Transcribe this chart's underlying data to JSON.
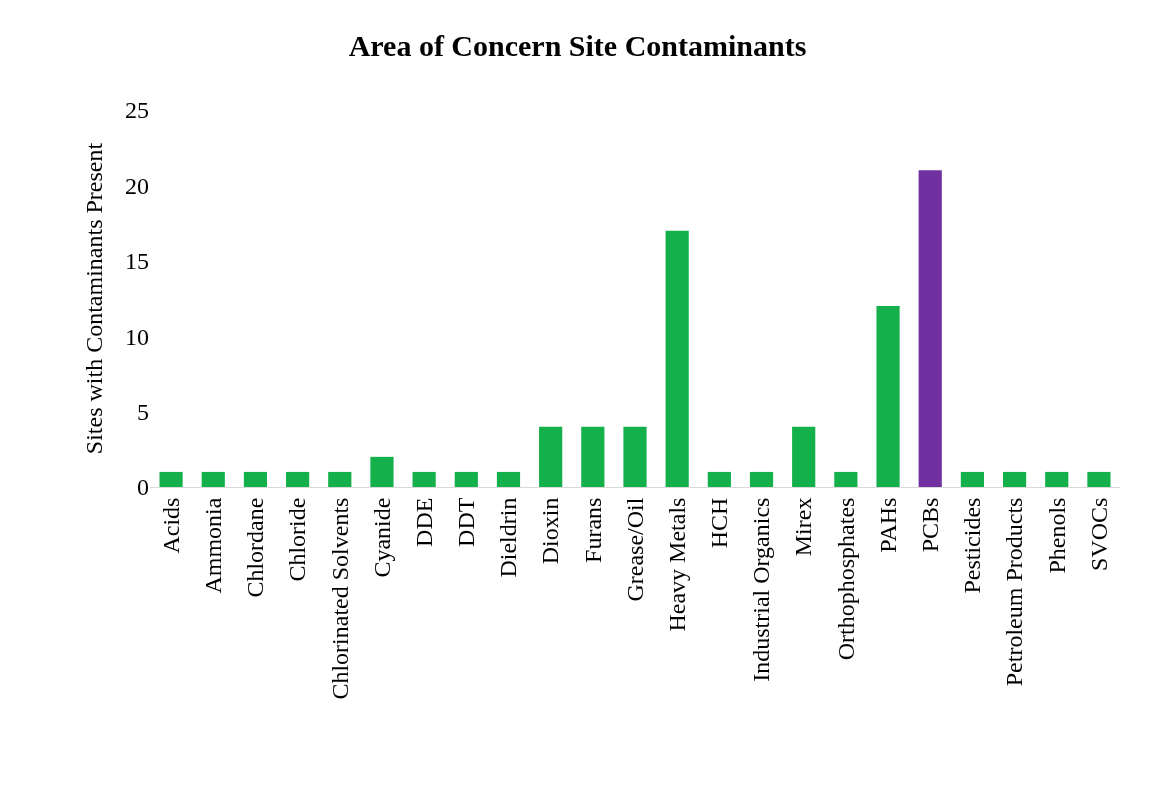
{
  "chart_data": {
    "type": "bar",
    "title": "Area of Concern Site Contaminants",
    "ylabel": "Sites with Contaminants Present",
    "categories": [
      "Acids",
      "Ammonia",
      "Chlordane",
      "Chloride",
      "Chlorinated Solvents",
      "Cyanide",
      "DDE",
      "DDT",
      "Dieldrin",
      "Dioxin",
      "Furans",
      "Grease/Oil",
      "Heavy Metals",
      "HCH",
      "Industrial Organics",
      "Mirex",
      "Orthophosphates",
      "PAHs",
      "PCBs",
      "Pesticides",
      "Petroleum Products",
      "Phenols",
      "SVOCs"
    ],
    "values": [
      1,
      1,
      1,
      1,
      1,
      2,
      1,
      1,
      1,
      4,
      4,
      4,
      17,
      1,
      1,
      4,
      1,
      12,
      21,
      1,
      1,
      1,
      1
    ],
    "colors": [
      "#14b04c",
      "#14b04c",
      "#14b04c",
      "#14b04c",
      "#14b04c",
      "#14b04c",
      "#14b04c",
      "#14b04c",
      "#14b04c",
      "#14b04c",
      "#14b04c",
      "#14b04c",
      "#14b04c",
      "#14b04c",
      "#14b04c",
      "#14b04c",
      "#14b04c",
      "#14b04c",
      "#7030a0",
      "#14b04c",
      "#14b04c",
      "#14b04c",
      "#14b04c"
    ],
    "ylim": [
      0,
      25
    ],
    "yticks": [
      0,
      5,
      10,
      15,
      20,
      25
    ],
    "grid": false
  }
}
